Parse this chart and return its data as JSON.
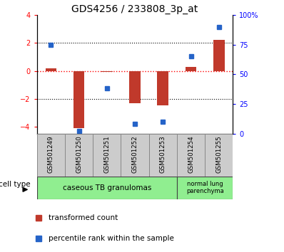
{
  "title": "GDS4256 / 233808_3p_at",
  "samples": [
    "GSM501249",
    "GSM501250",
    "GSM501251",
    "GSM501252",
    "GSM501253",
    "GSM501254",
    "GSM501255"
  ],
  "transformed_count": [
    0.2,
    -4.1,
    -0.1,
    -2.3,
    -2.5,
    0.3,
    2.2
  ],
  "percentile_rank": [
    75,
    2,
    38,
    8,
    10,
    65,
    90
  ],
  "ylim_left": [
    -4.5,
    4.0
  ],
  "ylim_right": [
    0,
    100
  ],
  "yticks_left": [
    -4,
    -2,
    0,
    2,
    4
  ],
  "yticks_right": [
    0,
    25,
    50,
    75,
    100
  ],
  "ytick_labels_right": [
    "0",
    "25",
    "50",
    "75",
    "100%"
  ],
  "hlines": [
    -2,
    0,
    2
  ],
  "bar_color": "#c0392b",
  "dot_color": "#2563c8",
  "bar_width": 0.4,
  "group1_label": "caseous TB granulomas",
  "group2_label": "normal lung\nparenchyma",
  "group_color": "#90ee90",
  "cell_type_label": "cell type",
  "legend_red_label": "transformed count",
  "legend_blue_label": "percentile rank within the sample",
  "title_fontsize": 10,
  "tick_fontsize": 7,
  "label_fontsize": 7.5
}
